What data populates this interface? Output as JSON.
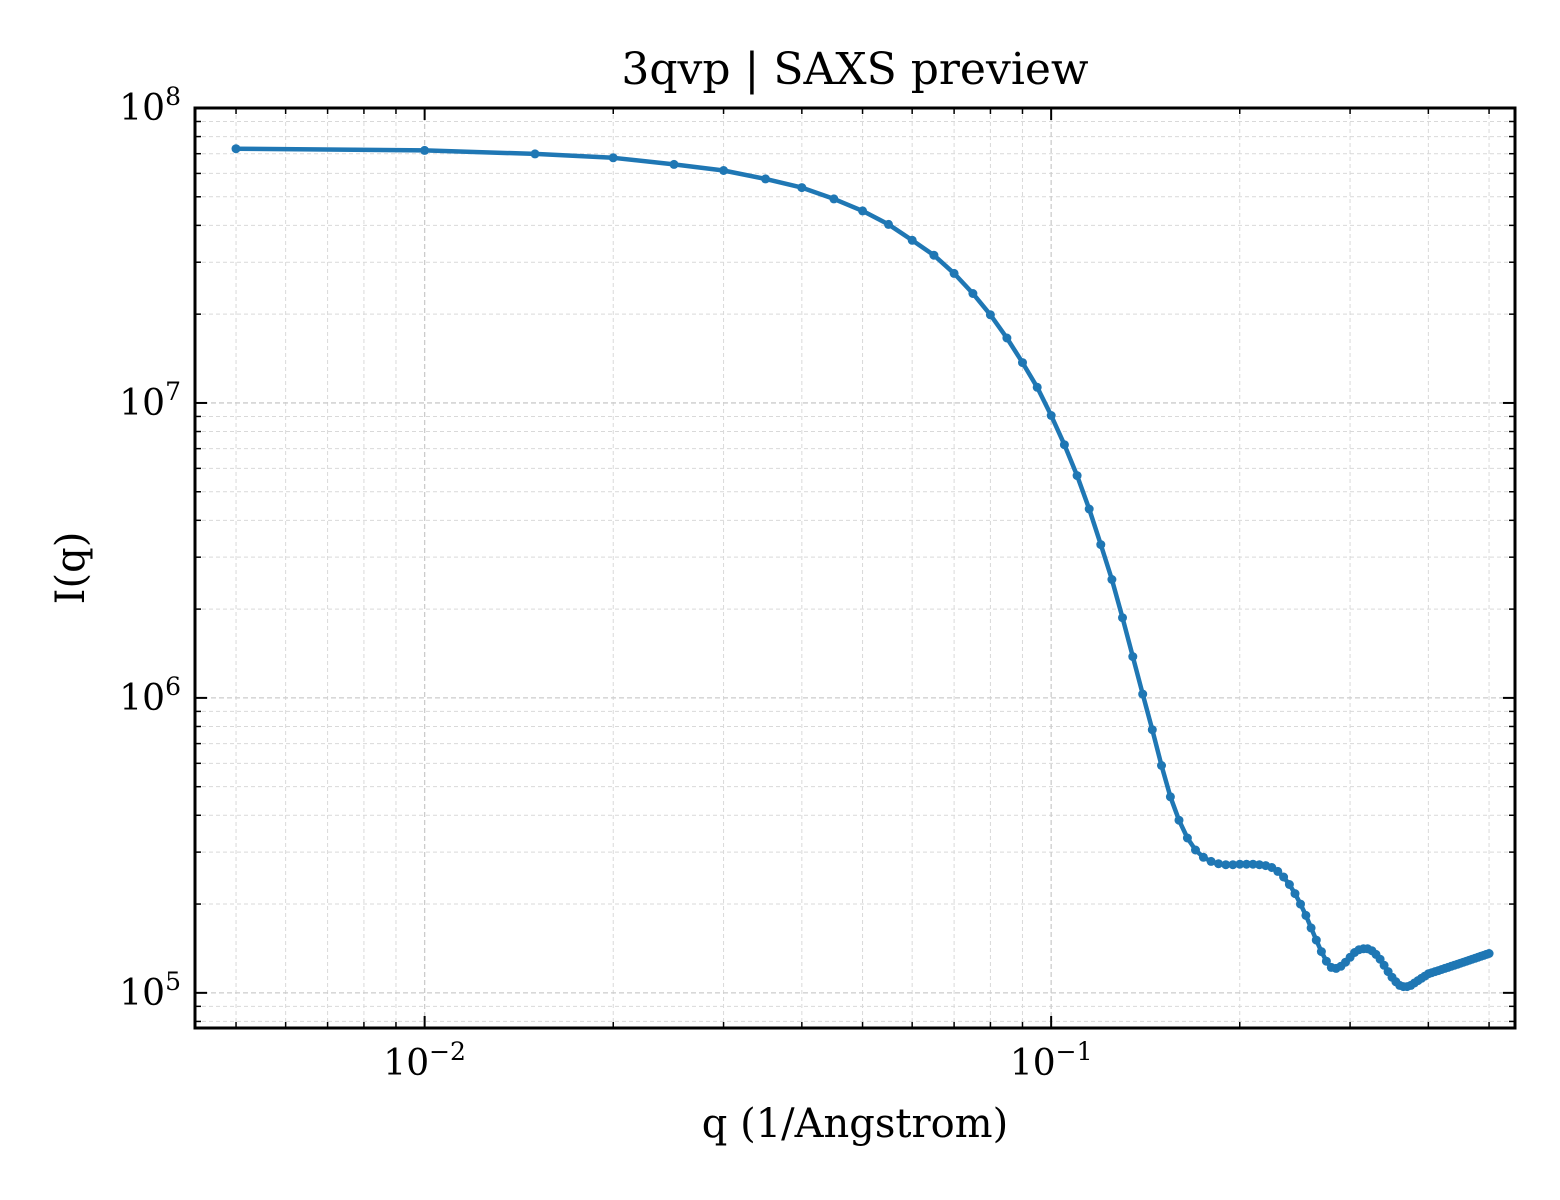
{
  "chart_data": {
    "type": "line",
    "title": "3qvp | SAXS preview",
    "xlabel": "q (1/Angstrom)",
    "ylabel": "I(q)",
    "xscale": "log",
    "yscale": "log",
    "xlim": [
      0.0043,
      0.55
    ],
    "ylim": [
      76000,
      100000000
    ],
    "grid": true,
    "legend": "none",
    "x_ticks": [
      {
        "base": "10",
        "exp": "−2",
        "value": 0.01
      },
      {
        "base": "10",
        "exp": "−1",
        "value": 0.1
      }
    ],
    "y_ticks": [
      {
        "base": "10",
        "exp": "5",
        "value": 100000
      },
      {
        "base": "10",
        "exp": "6",
        "value": 1000000
      },
      {
        "base": "10",
        "exp": "7",
        "value": 10000000
      },
      {
        "base": "10",
        "exp": "8",
        "value": 100000000
      }
    ],
    "series": [
      {
        "color": "#1f77b4",
        "marker": "circle",
        "x": [
          0.005,
          0.01,
          0.015,
          0.02,
          0.025,
          0.03,
          0.035,
          0.04,
          0.045,
          0.05,
          0.055,
          0.06,
          0.065,
          0.07,
          0.075,
          0.08,
          0.085,
          0.09,
          0.095,
          0.1,
          0.105,
          0.11,
          0.115,
          0.12,
          0.125,
          0.13,
          0.135,
          0.14,
          0.145,
          0.15,
          0.155,
          0.16,
          0.165,
          0.17,
          0.175,
          0.18,
          0.185,
          0.19,
          0.195,
          0.2,
          0.205,
          0.21,
          0.215,
          0.22,
          0.225,
          0.23,
          0.235,
          0.24,
          0.245,
          0.25,
          0.255,
          0.26,
          0.265,
          0.27,
          0.275,
          0.28,
          0.285,
          0.29,
          0.295,
          0.3,
          0.305,
          0.31,
          0.315,
          0.32,
          0.325,
          0.33,
          0.335,
          0.34,
          0.345,
          0.35,
          0.355,
          0.36,
          0.365,
          0.37,
          0.375,
          0.38,
          0.385,
          0.39,
          0.395,
          0.4,
          0.405,
          0.41,
          0.415,
          0.42,
          0.425,
          0.43,
          0.435,
          0.44,
          0.445,
          0.45,
          0.455,
          0.46,
          0.465,
          0.47,
          0.475,
          0.48,
          0.485,
          0.49,
          0.495,
          0.5
        ],
        "y": [
          72800000,
          71800000,
          69900000,
          67800000,
          64400000,
          61400000,
          57500000,
          53700000,
          49200000,
          44800000,
          40300000,
          35600000,
          31700000,
          27500000,
          23500000,
          19900000,
          16600000,
          13700000,
          11300000,
          9070000,
          7220000,
          5670000,
          4370000,
          3310000,
          2520000,
          1870000,
          1380000,
          1030000,
          780000,
          590000,
          462000,
          385000,
          335000,
          305000,
          288000,
          279000,
          274000,
          272000,
          272000,
          273000,
          273000,
          273000,
          272000,
          270000,
          266000,
          258000,
          247000,
          233000,
          217000,
          200000,
          183000,
          166000,
          151000,
          138000,
          128000,
          122000,
          121000,
          123000,
          127000,
          132000,
          137000,
          140000,
          141000,
          141000,
          139000,
          135000,
          130000,
          124000,
          118000,
          113000,
          109000,
          106000,
          105000,
          105000,
          106000,
          108000,
          110000,
          112000,
          114000,
          116000,
          117000,
          118000,
          119000,
          120000,
          121000,
          122000,
          123000,
          124000,
          125000,
          126000,
          127000,
          128000,
          129000,
          130000,
          131000,
          132000,
          133000,
          134000,
          135000,
          136000
        ]
      }
    ]
  }
}
